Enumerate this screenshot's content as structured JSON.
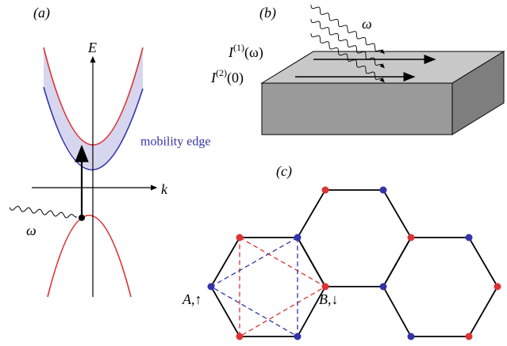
{
  "panel_a": {
    "label": "(a)",
    "energy_axis": "E",
    "momentum_axis": "k",
    "photon": "ω",
    "annotation": "mobility edge"
  },
  "panel_b": {
    "label": "(b)",
    "photon": "ω",
    "currents": [
      {
        "base": "I",
        "sup": "(1)",
        "arg": "(ω)"
      },
      {
        "base": "I",
        "sup": "(2)",
        "arg": "(0)"
      }
    ]
  },
  "panel_c": {
    "label": "(c)",
    "site_a": "A,↑",
    "site_b": "B,↓"
  }
}
